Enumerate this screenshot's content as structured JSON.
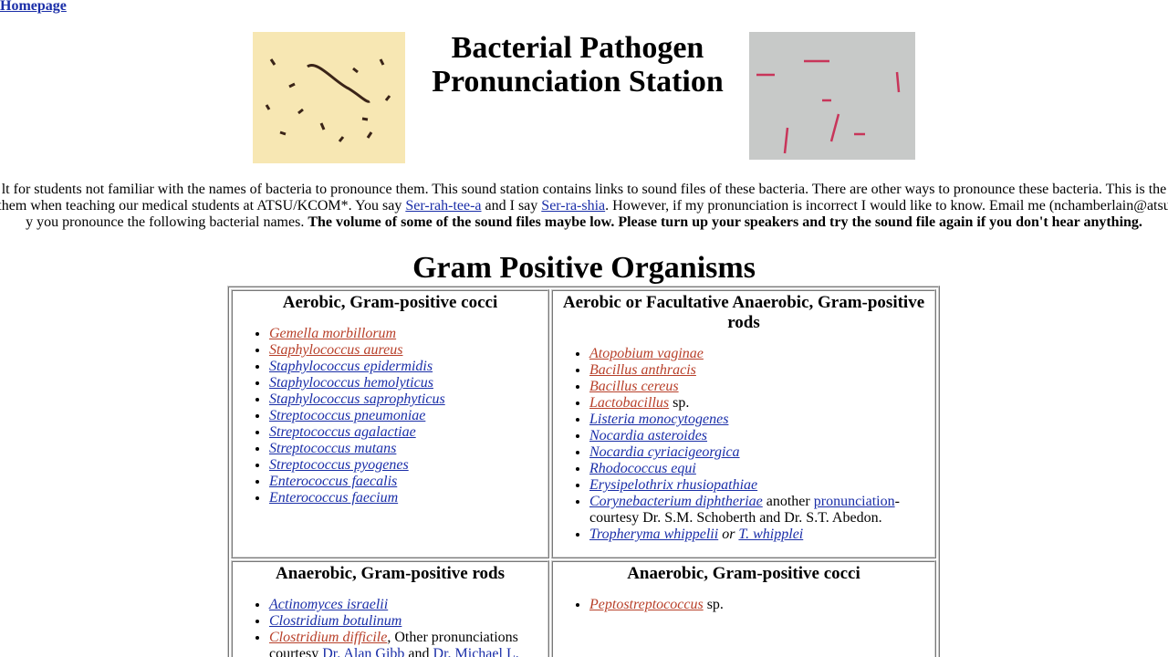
{
  "nav": {
    "homepage": "Homepage"
  },
  "header": {
    "title_lines": [
      "Bacterial Pathogen",
      "Pronunciation Station"
    ]
  },
  "intro": {
    "lines": [
      [
        "lt for students not familiar with the names of  bacteria to pronounce them. This sound station contains links to sound files of these bacteria. There are other ways to pronounce these bacteria. This is the"
      ],
      [
        "them when teaching our medical students at ATSU/KCOM*. You say ",
        "Ser-rah-tee-a",
        " and I say ",
        "Ser-ra-shia",
        ". However, if my pronunciation is incorrect I would like to know. Email me (nchamberlain@atsu"
      ],
      [
        "y you pronounce the following bacterial names. ",
        "The volume of some of the sound files maybe low. Please turn up your speakers and try the sound file again if you don't hear anything."
      ]
    ]
  },
  "section": {
    "title": "Gram Positive Organisms",
    "table": {
      "rows": [
        [
          {
            "heading": "Aerobic, Gram-positive cocci",
            "items": [
              [
                "Gemella morbillorum"
              ],
              [
                "Staphylococcus aureus "
              ],
              [
                "Staphylococcus epidermidis"
              ],
              [
                "Staphylococcus hemolyticus"
              ],
              [
                "Staphylococcus saprophyticus"
              ],
              [
                "Streptococcus pneumoniae "
              ],
              [
                "Streptococcus agalactiae"
              ],
              [
                "Streptococcus mutans"
              ],
              [
                "Streptococcus pyogenes "
              ],
              [
                "Enterococcus faecalis"
              ],
              [
                "Enterococcus faecium"
              ]
            ]
          },
          {
            "heading": "Aerobic or Facultative Anaerobic, Gram-positive rods",
            "items": [
              [
                "Atopobium vaginae"
              ],
              [
                "Bacillus anthracis"
              ],
              [
                "Bacillus cereus"
              ],
              [
                "Lactobacillus",
                " sp."
              ],
              [
                "Listeria monocytogenes"
              ],
              [
                "Nocardia asteroides"
              ],
              [
                "Nocardia cyriacigeorgica"
              ],
              [
                "Rhodococcus equi"
              ],
              [
                "Erysipelothrix rhusiopathiae"
              ],
              [
                "Corynebacterium diphtheriae",
                " another ",
                "pronunciation",
                "-courtesy Dr. S.M. Schoberth and Dr. S.T. Abedon."
              ],
              [
                "Tropheryma whippelii",
                " or ",
                "T. whipplei"
              ]
            ]
          }
        ],
        [
          {
            "heading": "Anaerobic, Gram-positive rods",
            "items": [
              [
                "Actinomyces israelii"
              ],
              [
                "Clostridium botulinum"
              ],
              [
                "Clostridium difficile",
                ", Other pronunciations courtesy ",
                "Dr. Alan Gibb",
                " and ",
                "Dr. Michael L."
              ]
            ]
          },
          {
            "heading": "Anaerobic, Gram-positive cocci",
            "items": [
              [
                "Peptostreptococcus",
                " sp."
              ]
            ]
          }
        ]
      ]
    }
  }
}
